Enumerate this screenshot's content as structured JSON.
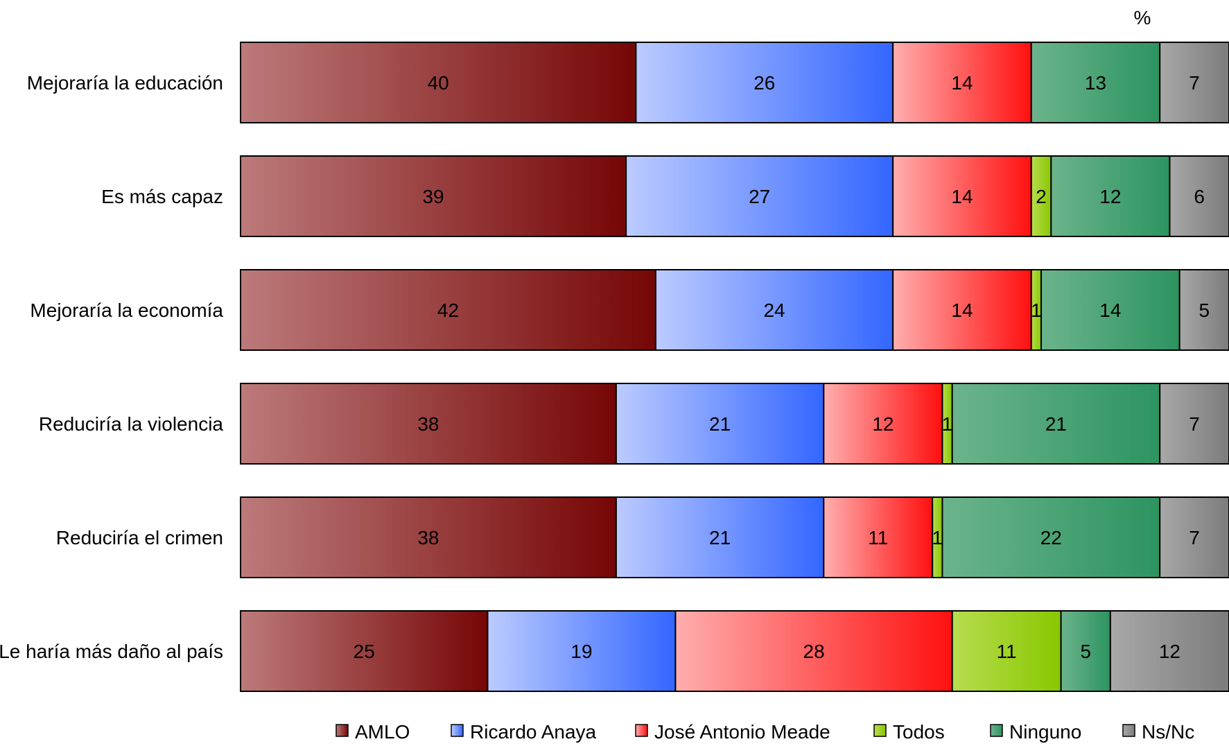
{
  "chart_data": {
    "type": "bar",
    "orientation": "horizontal",
    "stacked": true,
    "unit_label": "%",
    "title": "",
    "xlabel": "",
    "ylabel": "",
    "xlim": [
      0,
      100
    ],
    "grid": false,
    "legend_position": "bottom",
    "categories": [
      "Mejoraría la educación",
      "Es más capaz",
      "Mejoraría la economía",
      "Reduciría la violencia",
      "Reduciría el crimen",
      "Le haría más daño al país"
    ],
    "series": [
      {
        "name": "AMLO",
        "color_start": "#bc7a7a",
        "color_end": "#760606",
        "values": [
          40,
          39,
          42,
          38,
          38,
          25
        ]
      },
      {
        "name": "Ricardo Anaya",
        "color_start": "#bccbff",
        "color_end": "#3366ff",
        "values": [
          26,
          27,
          24,
          21,
          21,
          19
        ]
      },
      {
        "name": "José Antonio Meade",
        "color_start": "#ffaeae",
        "color_end": "#ff1010",
        "values": [
          14,
          14,
          14,
          12,
          11,
          28
        ]
      },
      {
        "name": "Todos",
        "color_start": "#b8dc50",
        "color_end": "#88c800",
        "values": [
          0,
          2,
          1,
          1,
          1,
          11
        ]
      },
      {
        "name": "Ninguno",
        "color_start": "#6cb48c",
        "color_end": "#2c9460",
        "values": [
          13,
          12,
          14,
          21,
          22,
          5
        ]
      },
      {
        "name": "Ns/Nc",
        "color_start": "#a8a8a8",
        "color_end": "#7c7c7c",
        "values": [
          7,
          6,
          5,
          7,
          7,
          12
        ]
      }
    ]
  }
}
